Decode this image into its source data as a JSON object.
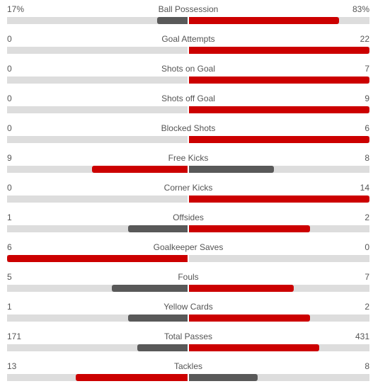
{
  "colors": {
    "leader": "#cc0000",
    "trailer": "#595959",
    "track": "#dddddd"
  },
  "stats": [
    {
      "label": "Ball Possession",
      "home": "17%",
      "away": "83%",
      "home_share": 0.17,
      "away_share": 0.83
    },
    {
      "label": "Goal Attempts",
      "home": "0",
      "away": "22",
      "home_share": 0.0,
      "away_share": 1.0
    },
    {
      "label": "Shots on Goal",
      "home": "0",
      "away": "7",
      "home_share": 0.0,
      "away_share": 1.0
    },
    {
      "label": "Shots off Goal",
      "home": "0",
      "away": "9",
      "home_share": 0.0,
      "away_share": 1.0
    },
    {
      "label": "Blocked Shots",
      "home": "0",
      "away": "6",
      "home_share": 0.0,
      "away_share": 1.0
    },
    {
      "label": "Free Kicks",
      "home": "9",
      "away": "8",
      "home_share": 0.53,
      "away_share": 0.47
    },
    {
      "label": "Corner Kicks",
      "home": "0",
      "away": "14",
      "home_share": 0.0,
      "away_share": 1.0
    },
    {
      "label": "Offsides",
      "home": "1",
      "away": "2",
      "home_share": 0.33,
      "away_share": 0.67
    },
    {
      "label": "Goalkeeper Saves",
      "home": "6",
      "away": "0",
      "home_share": 1.0,
      "away_share": 0.0
    },
    {
      "label": "Fouls",
      "home": "5",
      "away": "7",
      "home_share": 0.42,
      "away_share": 0.58
    },
    {
      "label": "Yellow Cards",
      "home": "1",
      "away": "2",
      "home_share": 0.33,
      "away_share": 0.67
    },
    {
      "label": "Total Passes",
      "home": "171",
      "away": "431",
      "home_share": 0.28,
      "away_share": 0.72
    },
    {
      "label": "Tackles",
      "home": "13",
      "away": "8",
      "home_share": 0.62,
      "away_share": 0.38
    }
  ]
}
